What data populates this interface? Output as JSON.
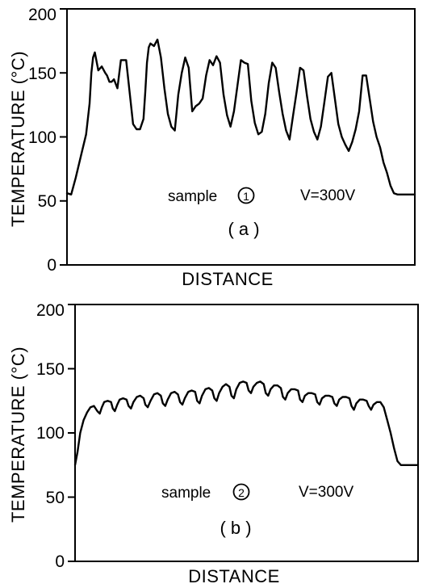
{
  "chart_data": [
    {
      "type": "line",
      "panel_label": "( a )",
      "xlabel": "DISTANCE",
      "ylabel": "TEMPERATURE (°C)",
      "ylim": [
        0,
        200
      ],
      "yticks": [
        "0",
        "50",
        "100",
        "150",
        "200"
      ],
      "annotation_sample": "sample",
      "annotation_sample_number": "1",
      "annotation_voltage": "V=300V",
      "series": [
        {
          "x": [
            0,
            1.2,
            2.5,
            4,
            5.5,
            6.5,
            7,
            7.5,
            8,
            9,
            10,
            11,
            11.5,
            12.2,
            12.8,
            13.5,
            14.5,
            15.5,
            17,
            18,
            19,
            20,
            21,
            22,
            22.5,
            23,
            23.5,
            24,
            25,
            26,
            27,
            28,
            29,
            30,
            31,
            32,
            33,
            34,
            35,
            36,
            37,
            38,
            39,
            40,
            41,
            42,
            43,
            44,
            45,
            46,
            47,
            48,
            49,
            50,
            51,
            52,
            53,
            54,
            55,
            56,
            57,
            58,
            59,
            60,
            61,
            62,
            63,
            64,
            65,
            66,
            67,
            68,
            69,
            70,
            71,
            72,
            73,
            74,
            75,
            76,
            77,
            78,
            79,
            80,
            81,
            82,
            83,
            84,
            85,
            86,
            87,
            88,
            89,
            90,
            91,
            92,
            93,
            94,
            95,
            96,
            97,
            98,
            99,
            100
          ],
          "y": [
            56,
            55,
            68,
            85,
            102,
            126,
            150,
            162,
            166,
            152,
            155,
            150,
            148,
            143,
            143,
            145,
            138,
            160,
            160,
            135,
            110,
            106,
            106,
            114,
            135,
            158,
            170,
            173,
            171,
            176,
            162,
            138,
            118,
            108,
            105,
            133,
            150,
            162,
            154,
            120,
            124,
            126,
            130,
            148,
            160,
            156,
            163,
            158,
            133,
            117,
            108,
            120,
            140,
            160,
            158,
            157,
            128,
            111,
            102,
            104,
            118,
            142,
            158,
            154,
            135,
            118,
            105,
            98,
            117,
            135,
            154,
            152,
            132,
            114,
            104,
            98,
            108,
            127,
            147,
            150,
            130,
            110,
            100,
            94,
            89,
            96,
            106,
            120,
            148,
            148,
            130,
            112,
            100,
            92,
            80,
            72,
            62,
            56,
            55,
            55,
            55,
            55,
            55,
            55
          ]
        }
      ]
    },
    {
      "type": "line",
      "panel_label": "( b )",
      "xlabel": "DISTANCE",
      "ylabel": "TEMPERATURE (°C)",
      "ylim": [
        0,
        200
      ],
      "yticks": [
        "0",
        "50",
        "100",
        "150",
        "200"
      ],
      "annotation_sample": "sample",
      "annotation_sample_number": "2",
      "annotation_voltage": "V=300V",
      "series": [
        {
          "x": [
            0,
            0.7,
            1.5,
            2.5,
            3.5,
            4.5,
            5.5,
            6.5,
            7.2,
            7.8,
            8.5,
            9.5,
            10.5,
            11,
            11.6,
            12.3,
            13,
            14,
            15,
            15.6,
            16.3,
            17,
            18,
            19,
            20,
            20.5,
            21.2,
            22,
            23,
            24,
            25,
            25.6,
            26.3,
            27,
            28,
            29,
            30,
            30.6,
            31.3,
            32,
            33,
            34,
            35,
            35.6,
            36.3,
            37,
            38,
            39,
            40,
            40.6,
            41.3,
            42,
            43,
            44,
            45,
            45.6,
            46.3,
            47,
            48,
            49,
            50,
            50.6,
            51.3,
            52,
            53,
            54,
            55,
            55.6,
            56.3,
            57,
            58,
            59,
            60,
            60.6,
            61.3,
            62,
            63,
            64,
            65,
            65.6,
            66.3,
            67,
            68,
            69,
            70,
            70.6,
            71.3,
            72,
            73,
            74,
            75,
            75.6,
            76.3,
            77,
            78,
            79,
            80,
            80.6,
            81.3,
            82,
            83,
            84,
            85,
            85.6,
            86.3,
            87,
            88,
            89,
            90,
            91,
            92,
            93,
            94,
            95,
            96,
            97,
            98,
            99,
            100
          ],
          "y": [
            75,
            85,
            100,
            110,
            116,
            120,
            121,
            117,
            115,
            120,
            124,
            125,
            124,
            119,
            117,
            122,
            126,
            127,
            126,
            121,
            119,
            124,
            128,
            129,
            127,
            122,
            120,
            125,
            130,
            131,
            129,
            123,
            121,
            126,
            131,
            132,
            130,
            124,
            122,
            127,
            132,
            133,
            132,
            125,
            123,
            129,
            134,
            135,
            133,
            127,
            125,
            131,
            136,
            138,
            136,
            129,
            127,
            134,
            139,
            140,
            139,
            133,
            131,
            136,
            139,
            140,
            138,
            131,
            129,
            134,
            137,
            137,
            135,
            128,
            126,
            131,
            134,
            134,
            133,
            126,
            124,
            129,
            131,
            131,
            130,
            124,
            122,
            127,
            129,
            129,
            128,
            123,
            121,
            126,
            128,
            128,
            127,
            121,
            118,
            123,
            126,
            126,
            125,
            121,
            118,
            122,
            124,
            124,
            120,
            110,
            100,
            88,
            78,
            75,
            75,
            75,
            75,
            75,
            75
          ]
        }
      ]
    }
  ]
}
